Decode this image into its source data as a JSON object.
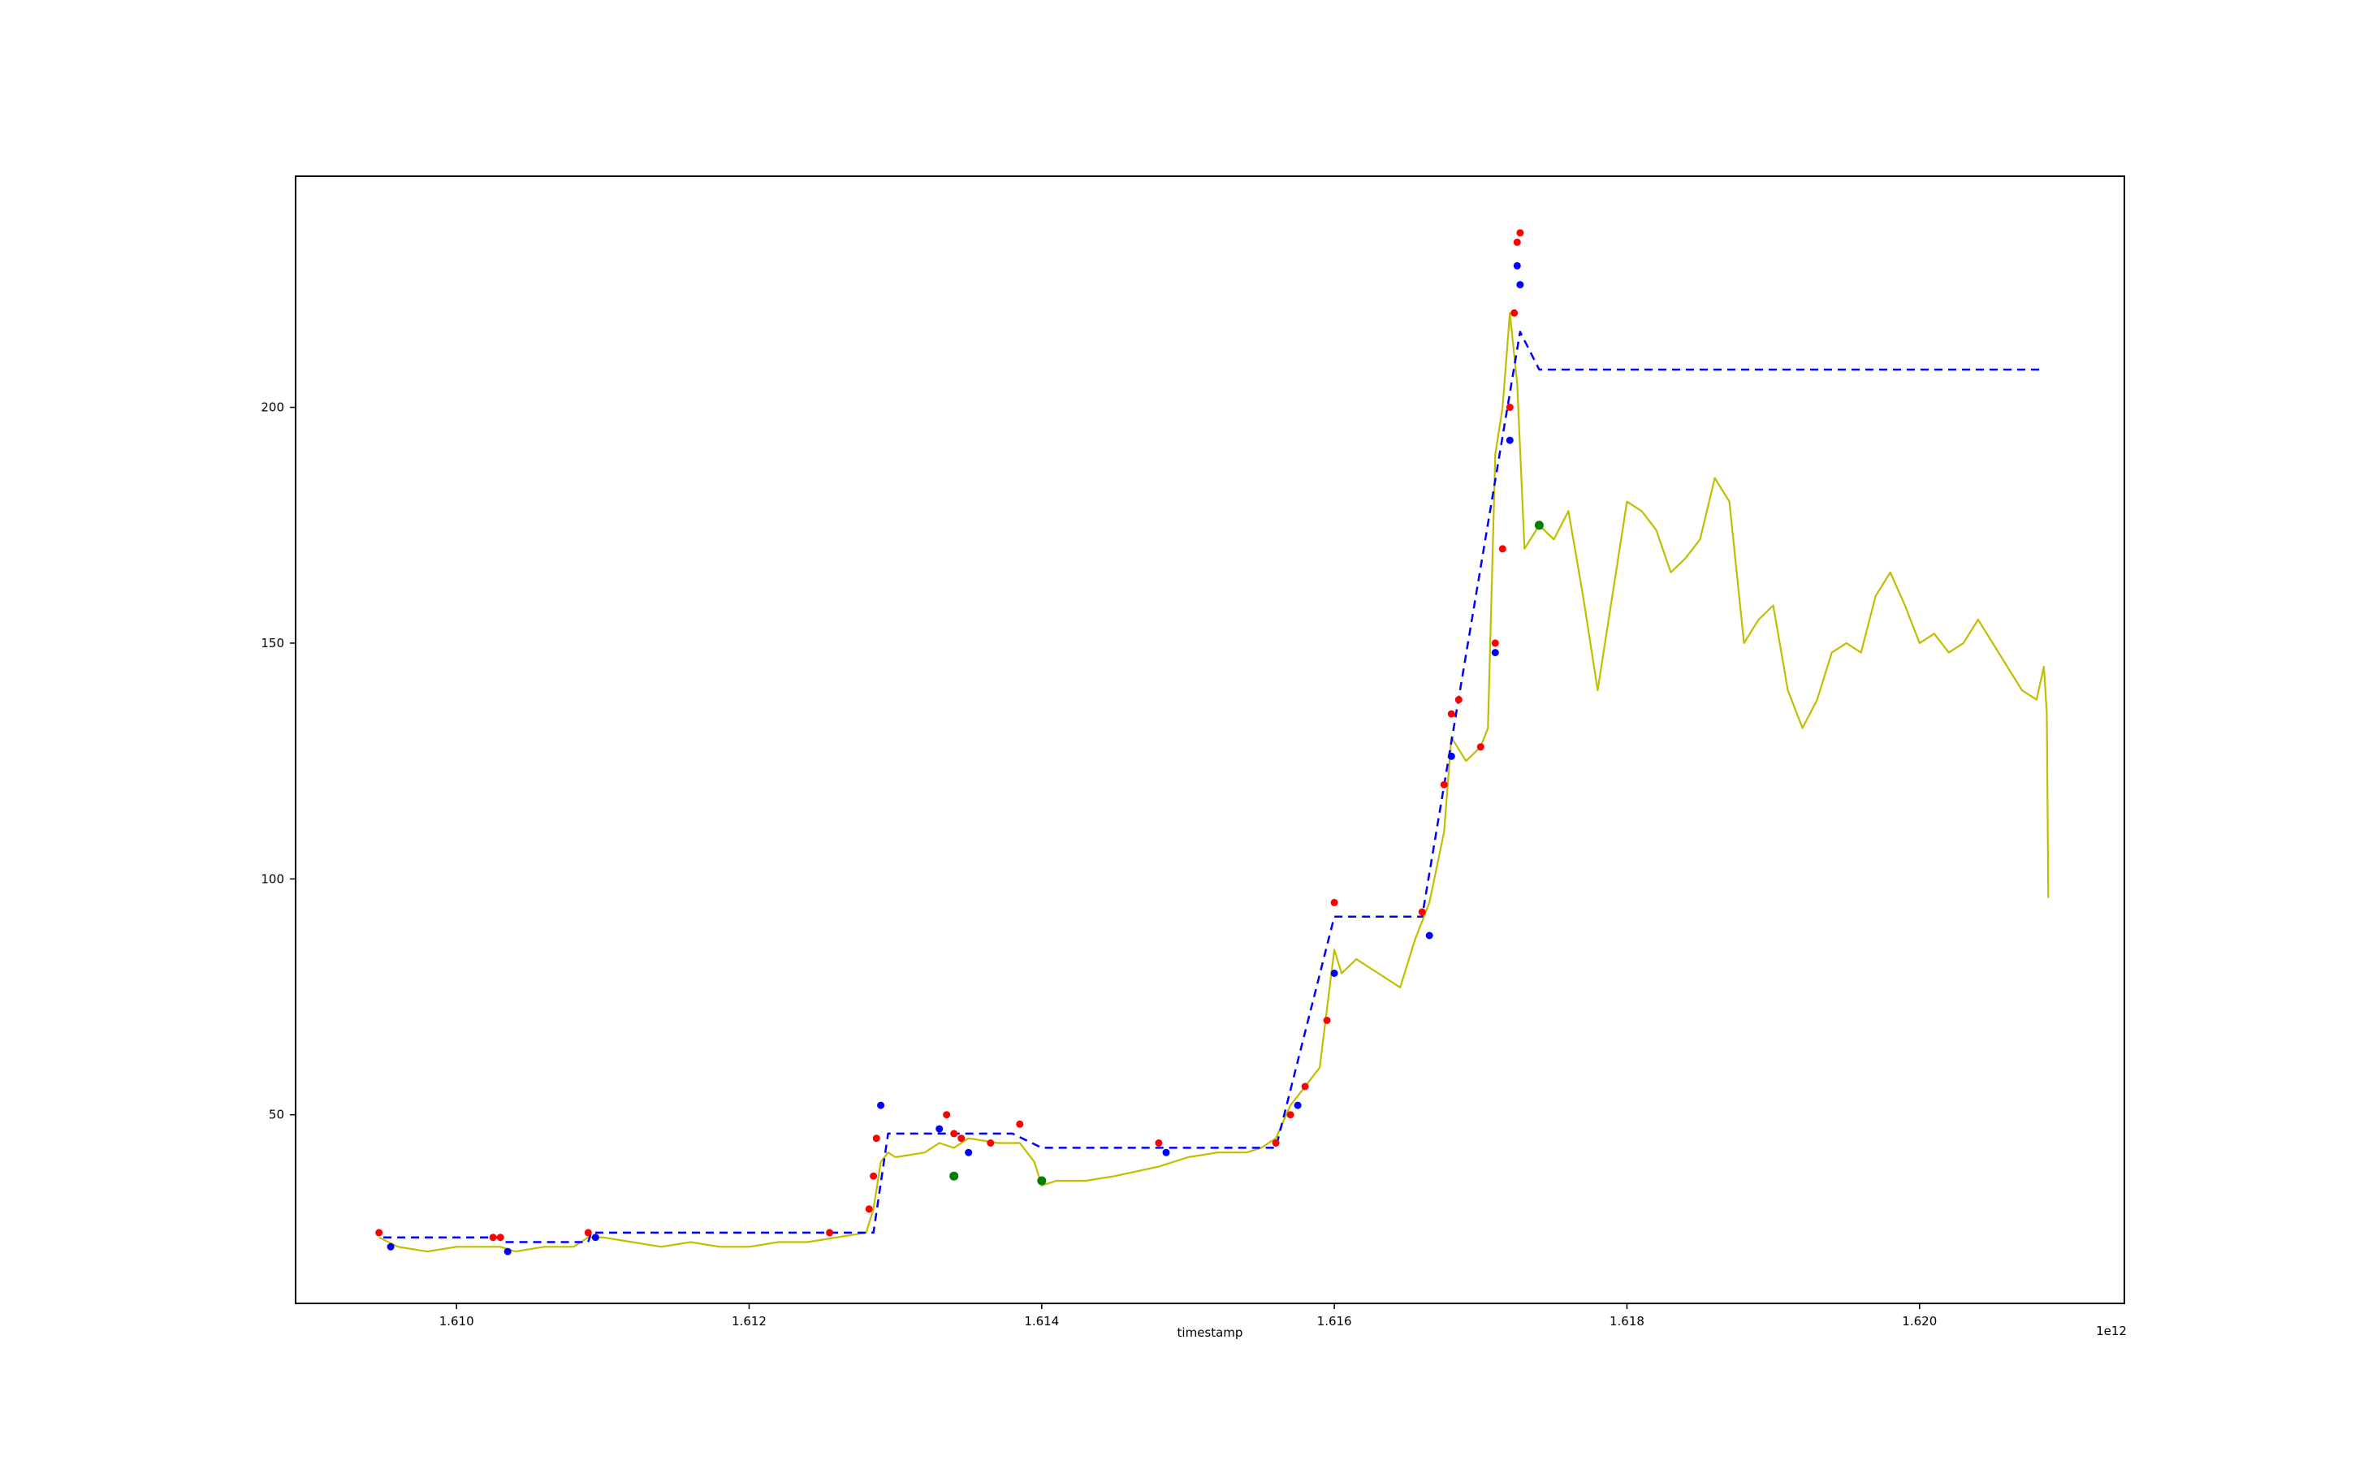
{
  "chart_data": {
    "type": "line",
    "title": "",
    "xlabel": "timestamp",
    "ylabel": "",
    "x_offset_label": "1e12",
    "xlim": [
      1608900000000,
      1621400000000
    ],
    "ylim": [
      10,
      249
    ],
    "x_ticks": [
      {
        "value": 1610000000000,
        "label": "1.610"
      },
      {
        "value": 1612000000000,
        "label": "1.612"
      },
      {
        "value": 1614000000000,
        "label": "1.614"
      },
      {
        "value": 1616000000000,
        "label": "1.616"
      },
      {
        "value": 1618000000000,
        "label": "1.618"
      },
      {
        "value": 1620000000000,
        "label": "1.620"
      }
    ],
    "y_ticks": [
      {
        "value": 50,
        "label": "50"
      },
      {
        "value": 100,
        "label": "100"
      },
      {
        "value": 150,
        "label": "150"
      },
      {
        "value": 200,
        "label": "200"
      }
    ],
    "grid": false,
    "legend": "none",
    "colors": {
      "price": "#bfbf00",
      "level": "#0000ff",
      "sell_marker": "#ff0000",
      "buy_marker": "#0000ff",
      "signal_marker": "#008000"
    },
    "series": [
      {
        "style": "solid",
        "color": "#bfbf00",
        "x": [
          1609470000000,
          1609600000000,
          1609800000000,
          1610000000000,
          1610200000000,
          1610300000000,
          1610400000000,
          1610600000000,
          1610800000000,
          1610900000000,
          1611000000000,
          1611200000000,
          1611400000000,
          1611600000000,
          1611800000000,
          1612000000000,
          1612200000000,
          1612400000000,
          1612600000000,
          1612800000000,
          1612850000000,
          1612900000000,
          1612950000000,
          1613000000000,
          1613200000000,
          1613300000000,
          1613400000000,
          1613500000000,
          1613700000000,
          1613850000000,
          1613950000000,
          1614000000000,
          1614100000000,
          1614300000000,
          1614500000000,
          1614800000000,
          1615000000000,
          1615200000000,
          1615400000000,
          1615500000000,
          1615600000000,
          1615700000000,
          1615800000000,
          1615900000000,
          1616000000000,
          1616050000000,
          1616150000000,
          1616300000000,
          1616450000000,
          1616550000000,
          1616650000000,
          1616750000000,
          1616800000000,
          1616900000000,
          1617000000000,
          1617050000000,
          1617100000000,
          1617150000000,
          1617200000000,
          1617250000000,
          1617300000000,
          1617400000000,
          1617500000000,
          1617600000000,
          1617700000000,
          1617800000000,
          1617900000000,
          1618000000000,
          1618100000000,
          1618200000000,
          1618300000000,
          1618400000000,
          1618500000000,
          1618600000000,
          1618700000000,
          1618800000000,
          1618900000000,
          1619000000000,
          1619100000000,
          1619200000000,
          1619300000000,
          1619400000000,
          1619500000000,
          1619600000000,
          1619700000000,
          1619800000000,
          1619900000000,
          1620000000000,
          1620100000000,
          1620200000000,
          1620300000000,
          1620400000000,
          1620500000000,
          1620600000000,
          1620700000000,
          1620800000000,
          1620850000000,
          1620870000000,
          1620880000000
        ],
        "y": [
          24,
          22,
          21,
          22,
          22,
          22,
          21,
          22,
          22,
          24,
          24,
          23,
          22,
          23,
          22,
          22,
          23,
          23,
          24,
          25,
          30,
          40,
          42,
          41,
          42,
          44,
          43,
          45,
          44,
          44,
          40,
          35,
          36,
          36,
          37,
          39,
          41,
          42,
          42,
          43,
          45,
          52,
          56,
          60,
          85,
          80,
          83,
          80,
          77,
          87,
          95,
          110,
          130,
          125,
          128,
          132,
          190,
          200,
          220,
          205,
          170,
          175,
          172,
          178,
          160,
          140,
          160,
          180,
          178,
          174,
          165,
          168,
          172,
          185,
          180,
          150,
          155,
          158,
          140,
          132,
          138,
          148,
          150,
          148,
          160,
          165,
          158,
          150,
          152,
          148,
          150,
          155,
          150,
          145,
          140,
          138,
          145,
          135,
          96
        ]
      },
      {
        "style": "dashed",
        "color": "#0000ff",
        "x": [
          1609500000000,
          1610300000000,
          1610330000000,
          1610900000000,
          1610920000000,
          1612850000000,
          1612950000000,
          1613350000000,
          1613800000000,
          1614000000000,
          1615600000000,
          1616000000000,
          1616600000000,
          1617270000000,
          1617400000000,
          1620850000000
        ],
        "y": [
          24,
          24,
          23,
          23,
          25,
          25,
          46,
          46,
          46,
          43,
          43,
          92,
          92,
          216,
          208,
          208
        ]
      }
    ],
    "markers": [
      {
        "color": "#ff0000",
        "x": [
          1609470000000,
          1610250000000,
          1610300000000,
          1610900000000,
          1612550000000,
          1612820000000,
          1612850000000,
          1612870000000,
          1613350000000,
          1613400000000,
          1613450000000,
          1613650000000,
          1613850000000,
          1614800000000,
          1615600000000,
          1615700000000,
          1615800000000,
          1615950000000,
          1616000000000,
          1616600000000,
          1616750000000,
          1616800000000,
          1616850000000,
          1617000000000,
          1617100000000,
          1617150000000,
          1617200000000,
          1617230000000,
          1617250000000,
          1617270000000
        ],
        "y": [
          25,
          24,
          24,
          25,
          25,
          30,
          37,
          45,
          50,
          46,
          45,
          44,
          48,
          44,
          44,
          50,
          56,
          70,
          95,
          93,
          120,
          135,
          138,
          128,
          150,
          170,
          200,
          220,
          235,
          237
        ]
      },
      {
        "color": "#0000ff",
        "x": [
          1609550000000,
          1610350000000,
          1610950000000,
          1612900000000,
          1613300000000,
          1613500000000,
          1614850000000,
          1615750000000,
          1616000000000,
          1616650000000,
          1616800000000,
          1617100000000,
          1617200000000,
          1617250000000,
          1617270000000
        ],
        "y": [
          22,
          21,
          24,
          52,
          47,
          42,
          42,
          52,
          80,
          88,
          126,
          148,
          193,
          230,
          226
        ]
      },
      {
        "color": "#008000",
        "x": [
          1613400000000,
          1614000000000,
          1617400000000
        ],
        "y": [
          37,
          36,
          175
        ]
      }
    ]
  }
}
